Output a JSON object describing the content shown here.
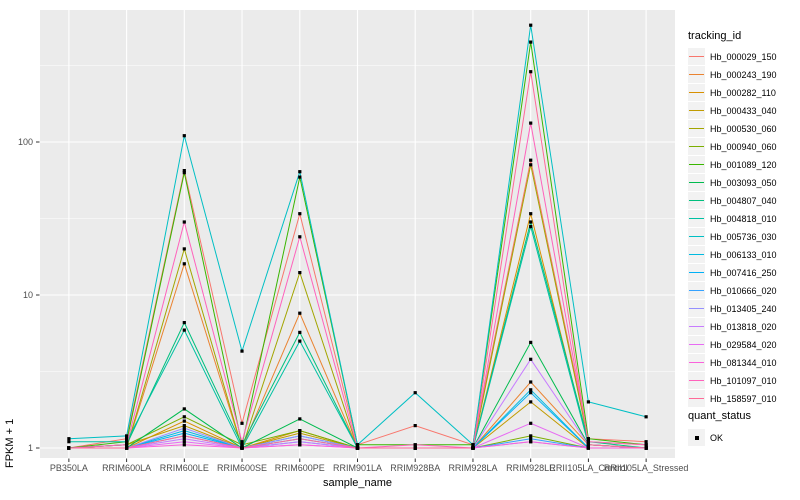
{
  "figure": {
    "y_axis_title": "FPKM + 1",
    "x_axis_title": "sample_name",
    "panel_background": "#EBEBEB",
    "grid_color": "#FFFFFF",
    "tick_color": "#333333",
    "tick_label_color": "#4D4D4D",
    "point_color": "#000000"
  },
  "legend": {
    "tracking_title": "tracking_id",
    "quant_title": "quant_status",
    "quant_items": [
      {
        "label": "OK",
        "marker": "black-square"
      }
    ]
  },
  "chart_data": {
    "type": "line",
    "title": "",
    "xlabel": "sample_name",
    "ylabel": "FPKM + 1",
    "scale_y": "log10",
    "ylim": [
      1,
      730
    ],
    "y_major_ticks": [
      1,
      10,
      100
    ],
    "y_minor_ticks": [
      3.162,
      31.62,
      316.2
    ],
    "grid": true,
    "legend_position": "right",
    "point_marker": "filled-square-black",
    "categories": [
      "PB350LA",
      "RRIM600LA",
      "RRIM600LE",
      "RRIM600SE",
      "RRIM600PE",
      "RRIM901LA",
      "RRIM928BA",
      "RRIM928LA",
      "RRIM928LE",
      "RRII105LA_Control",
      "RRII105LA_Stressed"
    ],
    "series": [
      {
        "name": "Hb_000029_150",
        "color": "#F8766D",
        "values": [
          1.0,
          1.15,
          65,
          1.45,
          34,
          1.05,
          1.4,
          1.05,
          76,
          1.15,
          1.1
        ]
      },
      {
        "name": "Hb_000243_190",
        "color": "#EA8331",
        "values": [
          1.0,
          1.0,
          16,
          1.0,
          7.6,
          1.0,
          1.0,
          1.0,
          2.7,
          1.05,
          1.0
        ]
      },
      {
        "name": "Hb_000282_110",
        "color": "#D89000",
        "values": [
          1.0,
          1.0,
          1.5,
          1.0,
          1.3,
          1.0,
          1.0,
          1.0,
          34,
          1.05,
          1.0
        ]
      },
      {
        "name": "Hb_000433_040",
        "color": "#C09B00",
        "values": [
          1.0,
          1.05,
          1.4,
          1.0,
          1.25,
          1.0,
          1.0,
          1.0,
          2.0,
          1.0,
          1.0
        ]
      },
      {
        "name": "Hb_000530_060",
        "color": "#A3A500",
        "values": [
          1.0,
          1.0,
          20,
          1.0,
          14,
          1.0,
          1.0,
          1.0,
          71,
          1.1,
          1.05
        ]
      },
      {
        "name": "Hb_000940_060",
        "color": "#7CAE00",
        "values": [
          1.0,
          1.05,
          1.6,
          1.05,
          1.3,
          1.0,
          1.0,
          1.0,
          1.2,
          1.0,
          1.0
        ]
      },
      {
        "name": "Hb_001089_120",
        "color": "#39B600",
        "values": [
          1.0,
          1.1,
          63,
          1.05,
          59,
          1.05,
          1.05,
          1.05,
          450,
          1.15,
          1.05
        ]
      },
      {
        "name": "Hb_003093_050",
        "color": "#00BB4E",
        "values": [
          1.0,
          1.0,
          1.8,
          1.0,
          1.55,
          1.0,
          1.0,
          1.0,
          4.9,
          1.05,
          1.0
        ]
      },
      {
        "name": "Hb_004807_040",
        "color": "#00BF7D",
        "values": [
          1.0,
          1.05,
          6.6,
          1.05,
          5.7,
          1.0,
          1.0,
          1.0,
          30,
          1.1,
          1.0
        ]
      },
      {
        "name": "Hb_004818_010",
        "color": "#00C1A3",
        "values": [
          1.1,
          1.1,
          5.9,
          1.0,
          5.0,
          1.0,
          1.0,
          1.0,
          28,
          1.05,
          1.0
        ]
      },
      {
        "name": "Hb_005736_030",
        "color": "#00BFC4",
        "values": [
          1.15,
          1.2,
          110,
          4.3,
          64,
          1.05,
          2.3,
          1.05,
          580,
          2.0,
          1.6
        ]
      },
      {
        "name": "Hb_006133_010",
        "color": "#00BAE0",
        "values": [
          1.0,
          1.0,
          1.3,
          1.0,
          1.2,
          1.0,
          1.0,
          1.0,
          2.4,
          1.0,
          1.0
        ]
      },
      {
        "name": "Hb_007416_250",
        "color": "#00B0F6",
        "values": [
          1.0,
          1.0,
          1.25,
          1.0,
          1.15,
          1.0,
          1.0,
          1.0,
          2.3,
          1.0,
          1.0
        ]
      },
      {
        "name": "Hb_010666_020",
        "color": "#35A2FF",
        "values": [
          1.0,
          1.0,
          1.2,
          1.0,
          1.1,
          1.0,
          1.0,
          1.0,
          1.15,
          1.0,
          1.0
        ]
      },
      {
        "name": "Hb_013405_240",
        "color": "#9590FF",
        "values": [
          1.0,
          1.0,
          1.35,
          1.0,
          1.2,
          1.0,
          1.0,
          1.0,
          1.1,
          1.0,
          1.0
        ]
      },
      {
        "name": "Hb_013818_020",
        "color": "#C77CFF",
        "values": [
          1.0,
          1.0,
          1.15,
          1.0,
          1.1,
          1.0,
          1.0,
          1.0,
          3.8,
          1.05,
          1.0
        ]
      },
      {
        "name": "Hb_029584_020",
        "color": "#E76BF3",
        "values": [
          1.0,
          1.0,
          1.1,
          1.0,
          1.05,
          1.0,
          1.0,
          1.0,
          1.45,
          1.0,
          1.0
        ]
      },
      {
        "name": "Hb_081344_010",
        "color": "#FA62DB",
        "values": [
          1.0,
          1.0,
          1.05,
          1.0,
          1.05,
          1.0,
          1.0,
          1.0,
          1.1,
          1.0,
          1.0
        ]
      },
      {
        "name": "Hb_101097_010",
        "color": "#FF62BC",
        "values": [
          1.0,
          1.05,
          30,
          1.1,
          24,
          1.0,
          1.05,
          1.0,
          133,
          1.1,
          1.05
        ]
      },
      {
        "name": "Hb_158597_010",
        "color": "#FF6A98",
        "values": [
          1.0,
          1.0,
          1.2,
          1.0,
          1.15,
          1.0,
          1.0,
          1.0,
          288,
          1.05,
          1.0
        ]
      }
    ]
  }
}
